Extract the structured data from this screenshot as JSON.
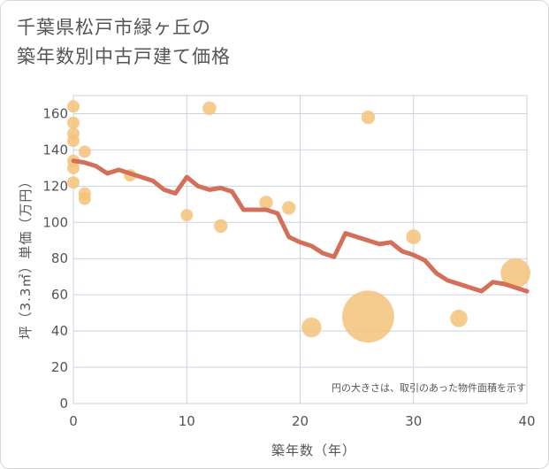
{
  "chart_data": {
    "type": "scatter",
    "title_line1": "千葉県松戸市緑ヶ丘の",
    "title_line2": "築年数別中古戸建て価格",
    "xlabel": "築年数（年）",
    "ylabel": "坪（3.3㎡）単価（万円）",
    "note": "円の大きさは、取引のあった物件面積を示す",
    "xlim": [
      0,
      40
    ],
    "ylim": [
      0,
      170
    ],
    "x_ticks": [
      0,
      10,
      20,
      30,
      40
    ],
    "y_ticks": [
      0,
      20,
      40,
      60,
      80,
      100,
      120,
      140,
      160
    ],
    "grid": true,
    "colors": {
      "scatter": "#f5c27a",
      "line": "#d4705a",
      "grid": "#c9d3e0",
      "text": "#555555"
    },
    "scatter": [
      {
        "x": 0,
        "y": 164,
        "size": 1.0
      },
      {
        "x": 0,
        "y": 155,
        "size": 1.0
      },
      {
        "x": 0,
        "y": 149,
        "size": 1.0
      },
      {
        "x": 0,
        "y": 145,
        "size": 1.0
      },
      {
        "x": 0,
        "y": 134,
        "size": 1.0
      },
      {
        "x": 0,
        "y": 130,
        "size": 1.0
      },
      {
        "x": 0,
        "y": 122,
        "size": 1.0
      },
      {
        "x": 1,
        "y": 139,
        "size": 1.0
      },
      {
        "x": 1,
        "y": 116,
        "size": 1.0
      },
      {
        "x": 1,
        "y": 113,
        "size": 1.0
      },
      {
        "x": 5,
        "y": 126,
        "size": 1.0
      },
      {
        "x": 10,
        "y": 104,
        "size": 1.0
      },
      {
        "x": 12,
        "y": 163,
        "size": 1.1
      },
      {
        "x": 13,
        "y": 98,
        "size": 1.1
      },
      {
        "x": 17,
        "y": 111,
        "size": 1.1
      },
      {
        "x": 19,
        "y": 108,
        "size": 1.1
      },
      {
        "x": 21,
        "y": 42,
        "size": 1.6
      },
      {
        "x": 26,
        "y": 158,
        "size": 1.1
      },
      {
        "x": 26,
        "y": 48,
        "size": 4.2
      },
      {
        "x": 30,
        "y": 92,
        "size": 1.2
      },
      {
        "x": 34,
        "y": 47,
        "size": 1.4
      },
      {
        "x": 39,
        "y": 72,
        "size": 2.4
      }
    ],
    "line": {
      "x": [
        0,
        1,
        2,
        3,
        4,
        5,
        6,
        7,
        8,
        9,
        10,
        11,
        12,
        13,
        14,
        15,
        16,
        17,
        18,
        19,
        20,
        21,
        22,
        23,
        24,
        25,
        26,
        27,
        28,
        29,
        30,
        31,
        32,
        33,
        34,
        35,
        36,
        37,
        38,
        39,
        40
      ],
      "y": [
        134,
        133,
        131,
        127,
        129,
        127,
        125,
        123,
        118,
        116,
        125,
        120,
        118,
        119,
        117,
        107,
        107,
        107,
        105,
        92,
        89,
        87,
        83,
        81,
        94,
        92,
        90,
        88,
        89,
        84,
        82,
        79,
        72,
        68,
        66,
        64,
        62,
        67,
        66,
        64,
        62
      ]
    }
  }
}
